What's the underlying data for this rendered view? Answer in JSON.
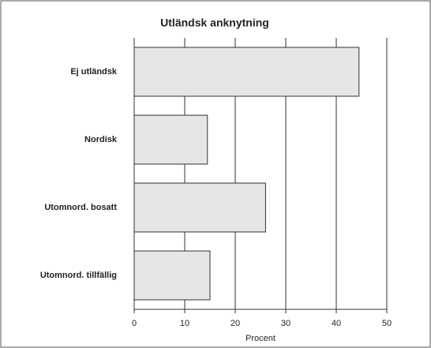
{
  "chart_data": {
    "type": "bar",
    "orientation": "horizontal",
    "title": "Utländsk anknytning",
    "categories": [
      "Ej utländsk",
      "Nordisk",
      "Utomnord. bosatt",
      "Utomnord. tillfällig"
    ],
    "values": [
      44.5,
      14.5,
      26,
      15
    ],
    "color": "#e6e6e6",
    "xlabel": "Procent",
    "xlim": [
      0,
      50
    ],
    "xticks": [
      0,
      10,
      20,
      30,
      40,
      50
    ],
    "grid": true
  }
}
